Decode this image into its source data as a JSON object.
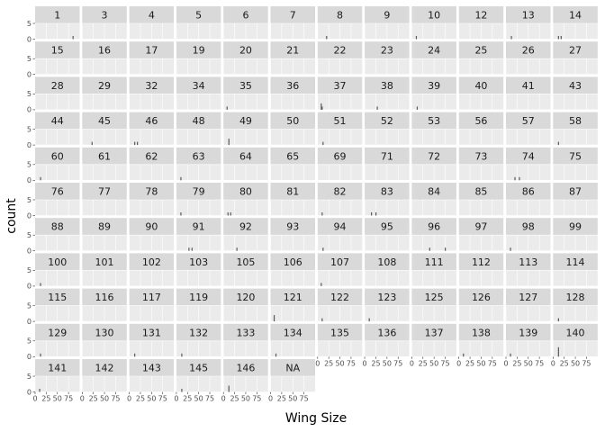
{
  "chart_data": {
    "type": "bar",
    "xlabel": "Wing Size",
    "ylabel": "count",
    "xlim": [
      0,
      100
    ],
    "ylim": [
      0,
      5
    ],
    "x_ticks": [
      {
        "value": 0,
        "label": "0"
      },
      {
        "value": 25,
        "label": "25"
      },
      {
        "value": 50,
        "label": "50"
      },
      {
        "value": 75,
        "label": "75"
      }
    ],
    "y_ticks": [
      {
        "value": 0,
        "label": "0"
      },
      {
        "value": 5,
        "label": "5"
      }
    ],
    "grid": true,
    "bar_color": "#595959",
    "facet_order": [
      "1",
      "3",
      "4",
      "5",
      "6",
      "7",
      "8",
      "9",
      "10",
      "12",
      "13",
      "14",
      "15",
      "16",
      "17",
      "19",
      "20",
      "21",
      "22",
      "23",
      "24",
      "25",
      "26",
      "27",
      "28",
      "29",
      "32",
      "34",
      "35",
      "36",
      "37",
      "38",
      "39",
      "40",
      "41",
      "43",
      "44",
      "45",
      "46",
      "48",
      "49",
      "50",
      "51",
      "52",
      "53",
      "56",
      "57",
      "58",
      "60",
      "61",
      "62",
      "63",
      "64",
      "65",
      "69",
      "71",
      "72",
      "73",
      "74",
      "75",
      "76",
      "77",
      "78",
      "79",
      "80",
      "81",
      "82",
      "83",
      "84",
      "85",
      "86",
      "87",
      "88",
      "89",
      "90",
      "91",
      "92",
      "93",
      "94",
      "95",
      "96",
      "97",
      "98",
      "99",
      "100",
      "101",
      "102",
      "103",
      "105",
      "106",
      "107",
      "108",
      "111",
      "112",
      "113",
      "114",
      "115",
      "116",
      "117",
      "119",
      "120",
      "121",
      "122",
      "123",
      "125",
      "126",
      "127",
      "128",
      "129",
      "130",
      "131",
      "132",
      "133",
      "134",
      "135",
      "136",
      "137",
      "138",
      "139",
      "140",
      "141",
      "142",
      "143",
      "145",
      "146",
      "NA"
    ],
    "bin_width": 2,
    "facets": {
      "1": [
        [
          85,
          1
        ]
      ],
      "8": [
        [
          20,
          1
        ]
      ],
      "10": [
        [
          10,
          1
        ]
      ],
      "13": [
        [
          12,
          1
        ]
      ],
      "14": [
        [
          12,
          1
        ],
        [
          18,
          1
        ]
      ],
      "35": [
        [
          8,
          1
        ]
      ],
      "37": [
        [
          8,
          2
        ],
        [
          10,
          1
        ]
      ],
      "38": [
        [
          28,
          1
        ]
      ],
      "39": [
        [
          12,
          1
        ]
      ],
      "45": [
        [
          22,
          1
        ]
      ],
      "46": [
        [
          12,
          1
        ],
        [
          18,
          1
        ]
      ],
      "49": [
        [
          12,
          2
        ]
      ],
      "51": [
        [
          12,
          1
        ]
      ],
      "58": [
        [
          12,
          1
        ]
      ],
      "60": [
        [
          12,
          1
        ]
      ],
      "63": [
        [
          10,
          1
        ]
      ],
      "74": [
        [
          20,
          1
        ],
        [
          30,
          1
        ]
      ],
      "79": [
        [
          10,
          1
        ]
      ],
      "80": [
        [
          10,
          1
        ],
        [
          16,
          1
        ]
      ],
      "82": [
        [
          10,
          1
        ]
      ],
      "83": [
        [
          15,
          1
        ],
        [
          25,
          1
        ]
      ],
      "91": [
        [
          28,
          1
        ],
        [
          35,
          1
        ]
      ],
      "92": [
        [
          30,
          1
        ]
      ],
      "94": [
        [
          12,
          1
        ]
      ],
      "96": [
        [
          40,
          1
        ],
        [
          75,
          1
        ]
      ],
      "98": [
        [
          10,
          1
        ]
      ],
      "100": [
        [
          12,
          1
        ]
      ],
      "107": [
        [
          8,
          1
        ]
      ],
      "121": [
        [
          8,
          2
        ]
      ],
      "122": [
        [
          10,
          1
        ]
      ],
      "123": [
        [
          10,
          1
        ]
      ],
      "128": [
        [
          12,
          1
        ]
      ],
      "129": [
        [
          12,
          1
        ]
      ],
      "131": [
        [
          12,
          1
        ]
      ],
      "132": [
        [
          12,
          1
        ]
      ],
      "134": [
        [
          12,
          1
        ]
      ],
      "138": [
        [
          10,
          1
        ]
      ],
      "139": [
        [
          10,
          1
        ]
      ],
      "140": [
        [
          12,
          3
        ]
      ],
      "141": [
        [
          10,
          1
        ]
      ],
      "145": [
        [
          12,
          1
        ]
      ],
      "146": [
        [
          12,
          2
        ]
      ]
    }
  }
}
